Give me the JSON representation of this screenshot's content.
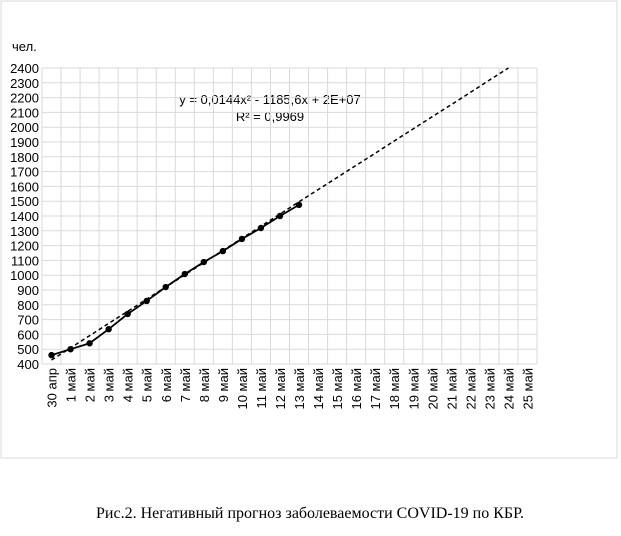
{
  "chart_data": {
    "type": "line",
    "y_label": "чел.",
    "caption": "Рис.2. Негативный прогноз заболеваемости COVID-19 по КБР.",
    "annotations": [
      "y = 0,0144x² - 1185,6x + 2E+07",
      "R² = 0,9969"
    ],
    "categories": [
      "30 апр",
      "1 май",
      "2 май",
      "3 май",
      "4 май",
      "5 май",
      "6 май",
      "7 май",
      "8 май",
      "9 май",
      "10 май",
      "11 май",
      "12 май",
      "13 май",
      "14 май",
      "15 май",
      "16 май",
      "17 май",
      "18 май",
      "19 май",
      "20 май",
      "21 май",
      "22 май",
      "23 май",
      "24 май",
      "25 май"
    ],
    "series": [
      {
        "color": "#000000",
        "dashed": false,
        "markers": true,
        "values": [
          460,
          500,
          540,
          635,
          738,
          826,
          920,
          1008,
          1089,
          1163,
          1245,
          1319,
          1400,
          1475,
          null,
          null,
          null,
          null,
          null,
          null,
          null,
          null,
          null,
          null,
          null,
          null
        ]
      },
      {
        "color": "#000000",
        "dashed": true,
        "markers": false,
        "values": [
          427,
          509,
          591,
          674,
          756,
          838,
          920,
          1002,
          1085,
          1167,
          1249,
          1331,
          1413,
          1496,
          1578,
          1660,
          1742,
          1824,
          1907,
          1989,
          2071,
          2153,
          2235,
          2318,
          2400,
          null
        ]
      }
    ],
    "ylim": [
      400,
      2400
    ],
    "yticks": [
      400,
      500,
      600,
      700,
      800,
      900,
      1000,
      1100,
      1200,
      1300,
      1400,
      1500,
      1600,
      1700,
      1800,
      1900,
      2000,
      2100,
      2200,
      2300,
      2400
    ],
    "grid": true
  }
}
